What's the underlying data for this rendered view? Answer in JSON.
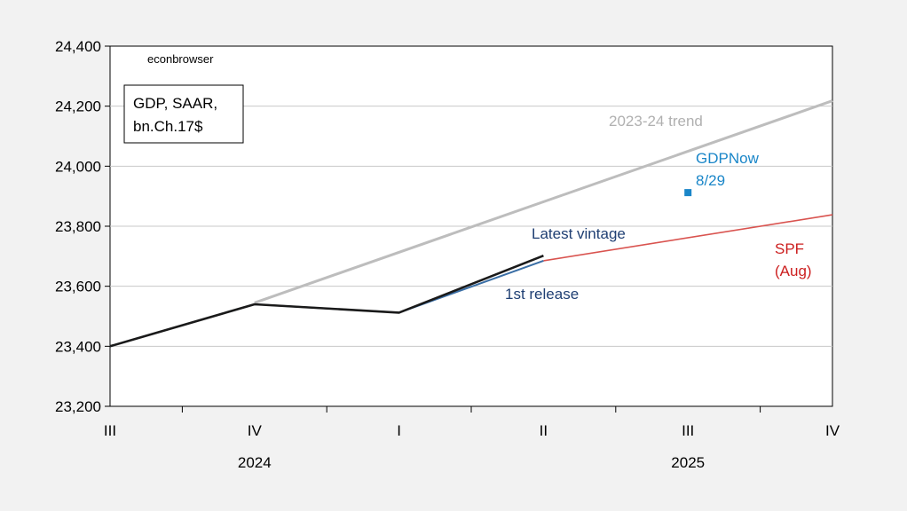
{
  "watermark": "econbrowser",
  "legend_box": {
    "line1": "GDP, SAAR,",
    "line2": "bn.Ch.17$"
  },
  "chart_data": {
    "type": "line",
    "ylim": [
      23200,
      24400
    ],
    "y_ticks": [
      23200,
      23400,
      23600,
      23800,
      24000,
      24200,
      24400
    ],
    "y_tick_labels": [
      "23,200",
      "23,400",
      "23,600",
      "23,800",
      "24,000",
      "24,200",
      "24,400"
    ],
    "x_categories": [
      "2024Q3",
      "2024Q4",
      "2025Q1",
      "2025Q2",
      "2025Q3",
      "2025Q4"
    ],
    "x_tick_labels": [
      "III",
      "IV",
      "I",
      "II",
      "III",
      "IV"
    ],
    "year_labels": [
      {
        "text": "2024",
        "at": "2024Q4"
      },
      {
        "text": "2025",
        "at": "2025Q3"
      }
    ],
    "grid": "horizontal",
    "series": [
      {
        "name": "2023-24 trend",
        "color": "#bdbdbd",
        "points": [
          [
            "2024Q4",
            23545
          ],
          [
            "2025Q4",
            24218
          ]
        ]
      },
      {
        "name": "SPF (Aug)",
        "color": "#d9534f",
        "points": [
          [
            "2025Q2",
            23685
          ],
          [
            "2025Q4",
            23838
          ]
        ]
      },
      {
        "name": "1st release",
        "color": "#3a6ea5",
        "points": [
          [
            "2024Q3",
            23400
          ],
          [
            "2024Q4",
            23540
          ],
          [
            "2025Q1",
            23512
          ],
          [
            "2025Q2",
            23685
          ]
        ]
      },
      {
        "name": "Latest vintage",
        "color": "#1a1a1a",
        "points": [
          [
            "2024Q3",
            23400
          ],
          [
            "2024Q4",
            23540
          ],
          [
            "2025Q1",
            23512
          ],
          [
            "2025Q2",
            23702
          ]
        ]
      },
      {
        "name": "GDPNow 8/29",
        "color": "#1a86c8",
        "marker": "square",
        "points": [
          [
            "2025Q3",
            23912
          ]
        ]
      }
    ],
    "annotations": [
      {
        "text": "2023-24 trend",
        "color": "#b0b0b0"
      },
      {
        "text": "GDPNow",
        "color": "#1a86c8"
      },
      {
        "text": "8/29",
        "color": "#1a86c8"
      },
      {
        "text": "Latest vintage",
        "color": "#1f3f73"
      },
      {
        "text": "1st release",
        "color": "#1f3f73"
      },
      {
        "text": "SPF",
        "color": "#cc1f1f"
      },
      {
        "text": "(Aug)",
        "color": "#cc1f1f"
      }
    ]
  }
}
